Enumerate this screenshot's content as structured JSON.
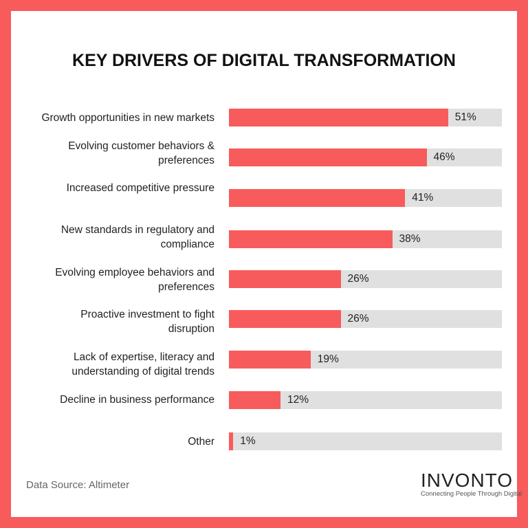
{
  "chart_data": {
    "type": "bar",
    "orientation": "horizontal",
    "title": "KEY DRIVERS OF DIGITAL TRANSFORMATION",
    "categories": [
      "Growth opportunities in new markets",
      "Evolving customer behaviors & preferences",
      "Increased competitive pressure",
      "New standards in regulatory and compliance",
      "Evolving employee behaviors and preferences",
      "Proactive investment to fight disruption",
      "Lack of expertise, literacy and understanding of digital trends",
      "Decline in business performance",
      "Other"
    ],
    "label_lines": [
      [
        "Growth opportunities in new markets"
      ],
      [
        "Evolving customer behaviors &",
        "preferences"
      ],
      [
        "Increased competitive pressure"
      ],
      [
        "New standards in regulatory and",
        "compliance"
      ],
      [
        "Evolving employee behaviors and",
        "preferences"
      ],
      [
        "Proactive investment to fight",
        "disruption"
      ],
      [
        "Lack of expertise, literacy and",
        "understanding of digital trends"
      ],
      [
        "Decline in business performance"
      ],
      [
        "Other"
      ]
    ],
    "values": [
      51,
      46,
      41,
      38,
      26,
      26,
      19,
      12,
      1
    ],
    "data_labels": [
      "51%",
      "46%",
      "41%",
      "38%",
      "26%",
      "26%",
      "19%",
      "12%",
      "1%"
    ],
    "unit": "%",
    "grid": false,
    "colors": {
      "bar": "#f85b5b",
      "track": "#e0e0e0",
      "frame": "#f85b5b"
    }
  },
  "footer": {
    "source": "Data Source: Altimeter",
    "logo": "INVONTO",
    "tagline": "Connecting People Through Digital"
  }
}
